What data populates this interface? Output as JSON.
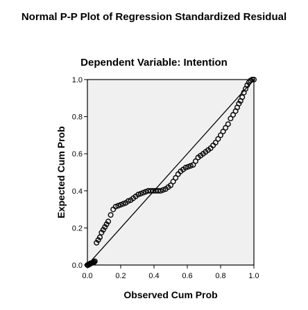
{
  "chart_data": {
    "type": "scatter",
    "title": "Normal P-P Plot of Regression Standardized Residual",
    "subtitle": "Dependent Variable: Intention",
    "xlabel": "Observed Cum Prob",
    "ylabel": "Expected Cum Prob",
    "xlim": [
      0,
      1
    ],
    "ylim": [
      0,
      1
    ],
    "xticks": [
      "0.0",
      "0.2",
      "0.4",
      "0.6",
      "0.8",
      "1.0"
    ],
    "yticks": [
      "0.0",
      "0.2",
      "0.4",
      "0.6",
      "0.8",
      "1.0"
    ],
    "grid": false,
    "reference_line": {
      "from": [
        0,
        0
      ],
      "to": [
        1,
        1
      ]
    },
    "colors": {
      "plot_background": "#f0f0f0",
      "points": "#000000",
      "line": "#000000"
    },
    "points": {
      "x": [
        0.0,
        0.005,
        0.01,
        0.015,
        0.02,
        0.025,
        0.03,
        0.035,
        0.04,
        0.045,
        0.055,
        0.065,
        0.075,
        0.085,
        0.095,
        0.105,
        0.115,
        0.125,
        0.14,
        0.155,
        0.17,
        0.185,
        0.2,
        0.215,
        0.23,
        0.245,
        0.26,
        0.275,
        0.29,
        0.305,
        0.32,
        0.335,
        0.35,
        0.365,
        0.38,
        0.395,
        0.41,
        0.425,
        0.44,
        0.455,
        0.47,
        0.485,
        0.5,
        0.515,
        0.53,
        0.545,
        0.56,
        0.575,
        0.59,
        0.605,
        0.62,
        0.635,
        0.65,
        0.665,
        0.68,
        0.695,
        0.71,
        0.725,
        0.74,
        0.755,
        0.77,
        0.785,
        0.8,
        0.815,
        0.83,
        0.845,
        0.86,
        0.875,
        0.89,
        0.9,
        0.91,
        0.92,
        0.93,
        0.94,
        0.95,
        0.96,
        0.97,
        0.98,
        0.99,
        1.0
      ],
      "y": [
        0.0,
        0.0,
        0.005,
        0.005,
        0.01,
        0.01,
        0.012,
        0.015,
        0.015,
        0.02,
        0.12,
        0.135,
        0.15,
        0.175,
        0.19,
        0.205,
        0.22,
        0.235,
        0.27,
        0.3,
        0.315,
        0.32,
        0.325,
        0.33,
        0.335,
        0.345,
        0.35,
        0.36,
        0.37,
        0.38,
        0.385,
        0.39,
        0.395,
        0.4,
        0.4,
        0.4,
        0.4,
        0.4,
        0.4,
        0.405,
        0.41,
        0.42,
        0.43,
        0.45,
        0.47,
        0.49,
        0.505,
        0.515,
        0.525,
        0.53,
        0.535,
        0.54,
        0.56,
        0.58,
        0.59,
        0.6,
        0.61,
        0.62,
        0.63,
        0.645,
        0.66,
        0.68,
        0.7,
        0.72,
        0.74,
        0.76,
        0.79,
        0.81,
        0.83,
        0.85,
        0.87,
        0.885,
        0.905,
        0.93,
        0.95,
        0.97,
        0.985,
        0.995,
        1.0,
        1.0
      ]
    }
  }
}
